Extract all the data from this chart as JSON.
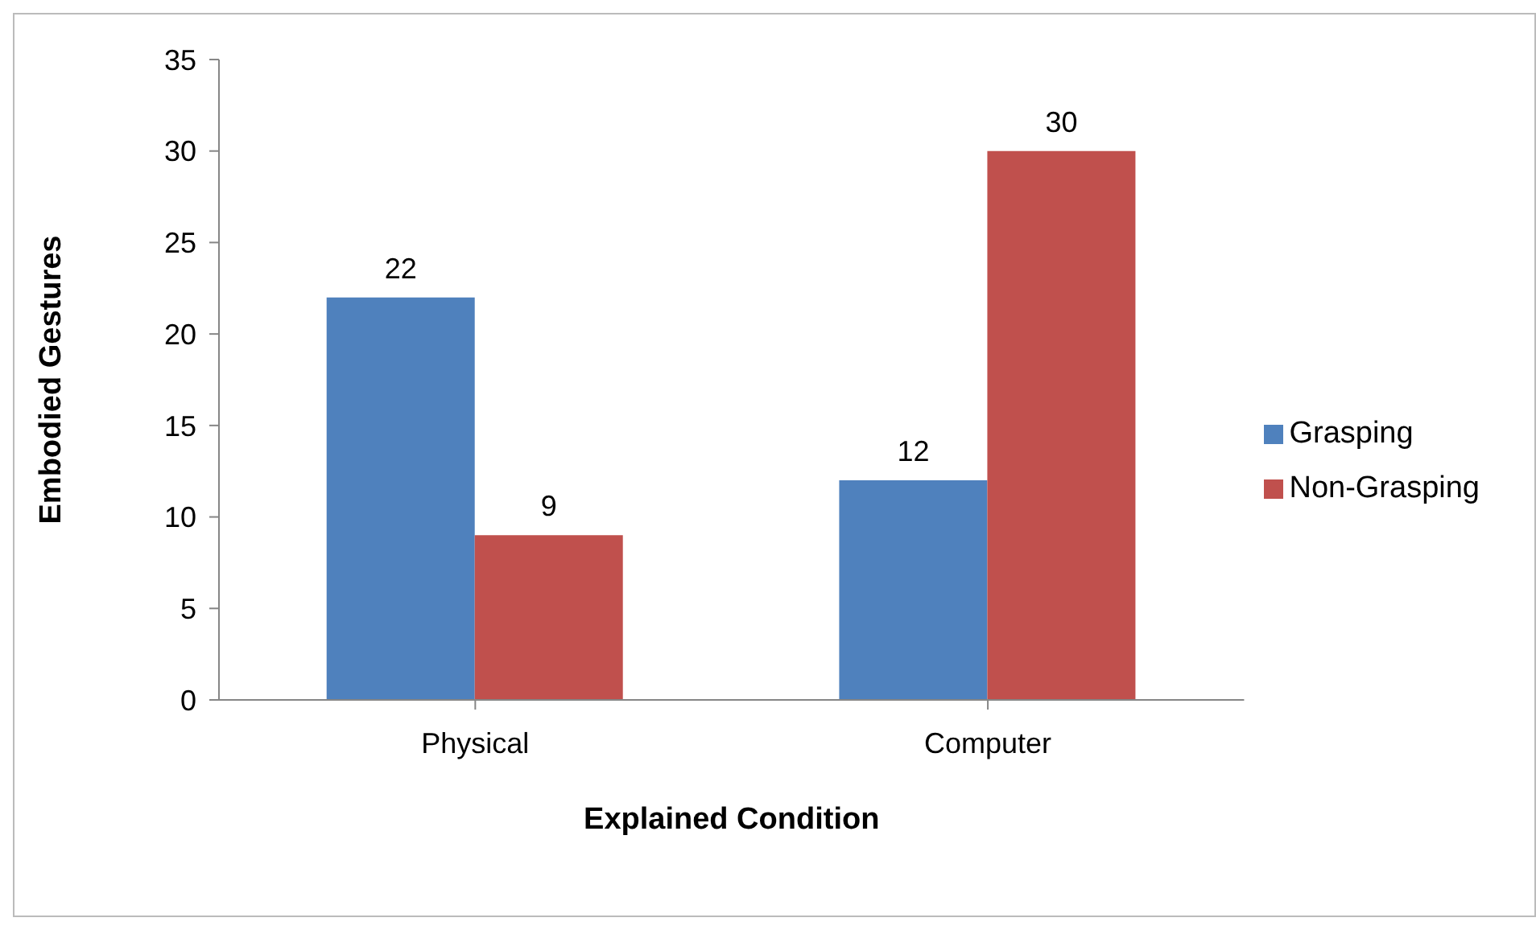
{
  "chart_data": {
    "type": "bar",
    "xlabel": "Explained Condition",
    "ylabel": "Embodied Gestures",
    "categories": [
      "Physical",
      "Computer"
    ],
    "series": [
      {
        "name": "Grasping",
        "color": "#4f81bd",
        "values": [
          22,
          12
        ]
      },
      {
        "name": "Non-Grasping",
        "color": "#c0504d",
        "values": [
          9,
          30
        ]
      }
    ],
    "ylim": [
      0,
      35
    ],
    "yticks": [
      0,
      5,
      10,
      15,
      20,
      25,
      30,
      35
    ],
    "data_labels": true,
    "legend": "right"
  }
}
